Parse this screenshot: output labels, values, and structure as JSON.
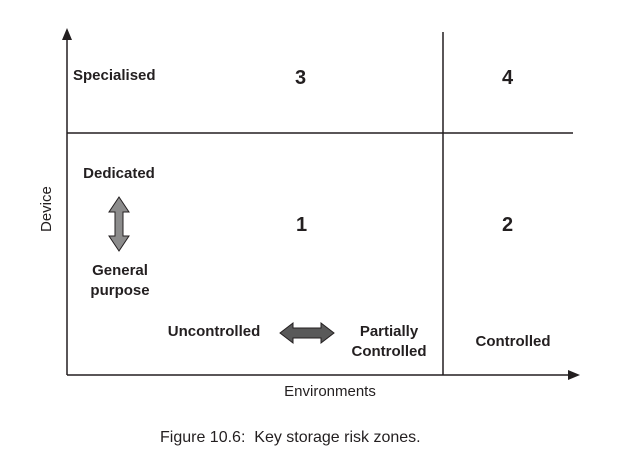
{
  "axes": {
    "y_label": "Device",
    "x_label": "Environments"
  },
  "device_levels": {
    "specialised": "Specialised",
    "dedicated": "Dedicated",
    "general_purpose": "General purpose"
  },
  "environment_levels": {
    "uncontrolled": "Uncontrolled",
    "partially_controlled": "Partially Controlled",
    "controlled": "Controlled"
  },
  "zones": {
    "z1": "1",
    "z2": "2",
    "z3": "3",
    "z4": "4"
  },
  "caption": {
    "prefix": "Figure 10.6:",
    "text": "Key storage risk zones."
  },
  "colors": {
    "line": "#231f20",
    "vertical_arrow_fill": "#8c8c8c",
    "horizontal_arrow_fill": "#595959"
  }
}
